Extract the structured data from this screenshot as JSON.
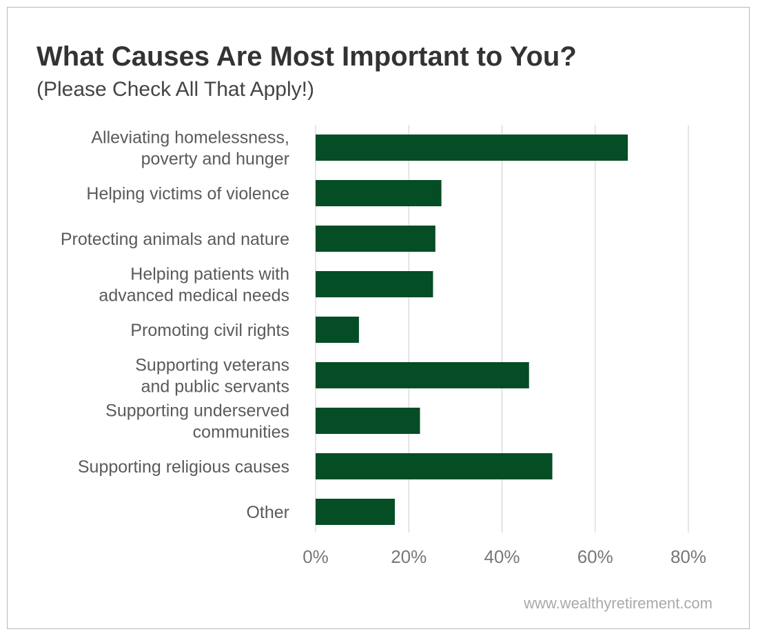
{
  "title": "What Causes Are Most Important to You?",
  "subtitle": "(Please Check All That Apply!)",
  "footer": "www.wealthyretirement.com",
  "colors": {
    "bar": "#044d25",
    "grid": "#cccccc",
    "frame": "#b9b9b9"
  },
  "chart_data": {
    "type": "bar",
    "orientation": "horizontal",
    "categories": [
      [
        "Alleviating homelessness,",
        "poverty and hunger"
      ],
      [
        "Helping victims of violence"
      ],
      [
        "Protecting animals and nature"
      ],
      [
        "Helping patients with",
        "advanced medical needs"
      ],
      [
        "Promoting civil rights"
      ],
      [
        "Supporting veterans",
        "and public servants"
      ],
      [
        "Supporting underserved",
        "communities"
      ],
      [
        "Supporting religious causes"
      ],
      [
        "Other"
      ]
    ],
    "values": [
      67,
      27,
      25.7,
      25.2,
      9.3,
      45.8,
      22.4,
      50.8,
      17
    ],
    "xlim": [
      0,
      80
    ],
    "x_ticks": [
      0,
      20,
      40,
      60,
      80
    ],
    "x_tick_labels": [
      "0%",
      "20%",
      "40%",
      "60%",
      "80%"
    ],
    "grid": true
  }
}
